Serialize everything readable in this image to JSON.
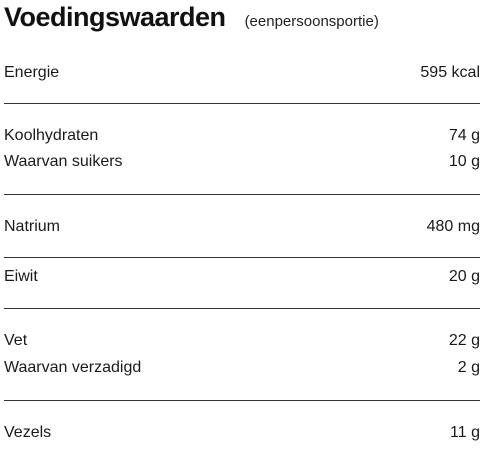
{
  "header": {
    "title": "Voedingswaarden",
    "subtitle": "(eenpersoonsportie)"
  },
  "rows": [
    {
      "label": "Energie",
      "value": "595 kcal"
    },
    {
      "label": "Koolhydraten",
      "value": "74 g"
    },
    {
      "label": "Waarvan suikers",
      "value": "10 g"
    },
    {
      "label": "Natrium",
      "value": "480 mg"
    },
    {
      "label": "Eiwit",
      "value": "20 g"
    },
    {
      "label": "Vet",
      "value": "22 g"
    },
    {
      "label": "Waarvan verzadigd",
      "value": "2 g"
    },
    {
      "label": "Vezels",
      "value": "11 g"
    }
  ]
}
